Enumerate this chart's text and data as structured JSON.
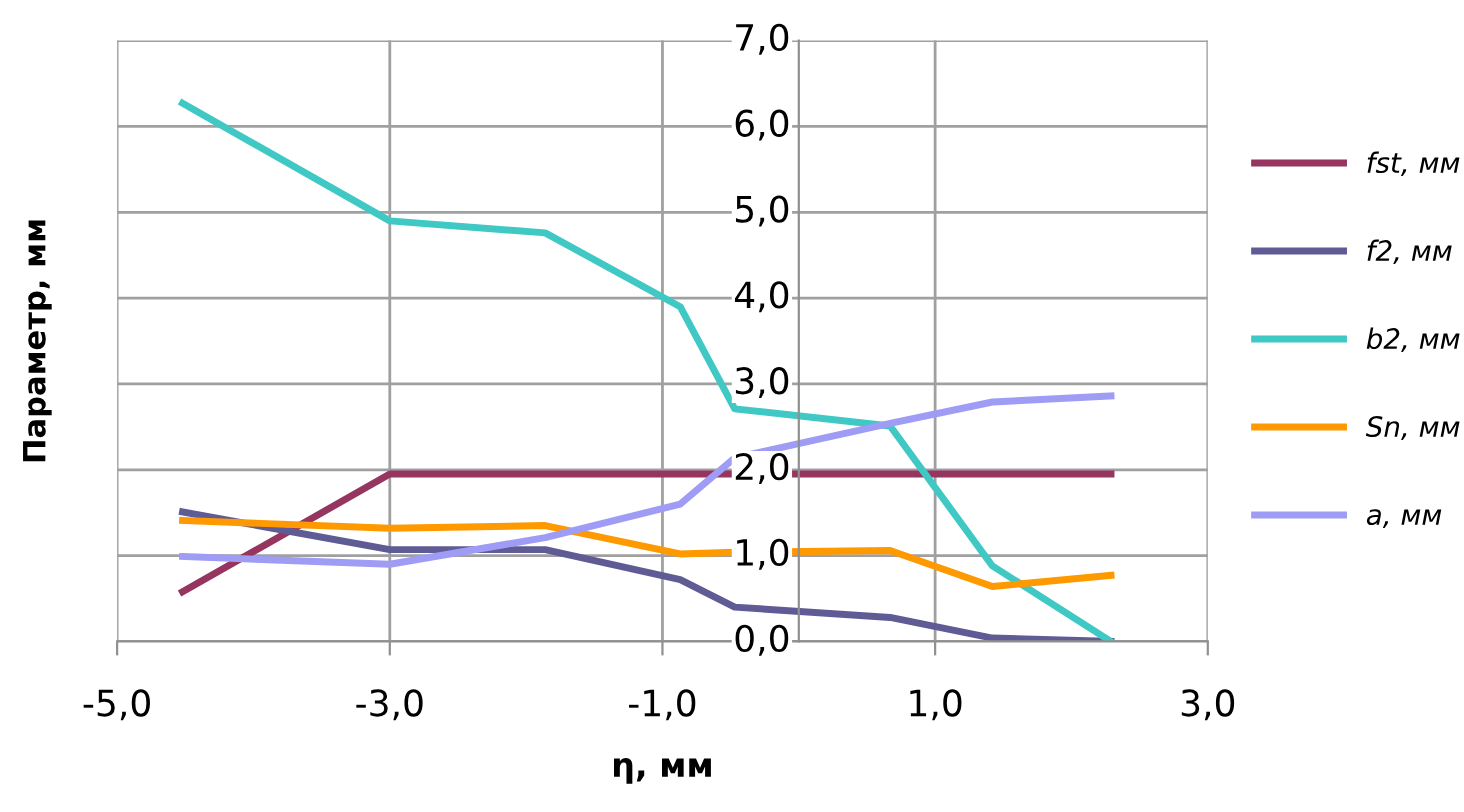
{
  "chart_data": {
    "type": "line",
    "xlabel": "η, мм",
    "ylabel": "Параметр, мм",
    "x": [
      -4.52,
      -3.0,
      -1.86,
      -0.87,
      -0.47,
      0.67,
      1.42,
      2.29
    ],
    "series": [
      {
        "name": "fst, мм",
        "color": "#953560",
        "values": [
          0.58,
          1.95,
          1.95,
          1.95,
          1.95,
          1.95,
          1.95,
          1.95
        ]
      },
      {
        "name": "f2, мм",
        "color": "#5f5b94",
        "values": [
          1.51,
          1.07,
          1.07,
          0.72,
          0.4,
          0.28,
          0.04,
          0.0
        ]
      },
      {
        "name": "b2, мм",
        "color": "#40c8c4",
        "values": [
          6.27,
          4.9,
          4.76,
          3.9,
          2.71,
          2.51,
          0.88,
          0.0
        ]
      },
      {
        "name": "Sn, мм",
        "color": "#ff9900",
        "values": [
          1.41,
          1.32,
          1.35,
          1.02,
          1.04,
          1.06,
          0.64,
          0.77
        ]
      },
      {
        "name": "a, мм",
        "color": "#9f9cf6",
        "values": [
          0.99,
          0.9,
          1.21,
          1.6,
          2.14,
          2.54,
          2.79,
          2.86
        ]
      }
    ],
    "xlim": [
      -5,
      3
    ],
    "xticks": [
      {
        "value": -5,
        "label": "-5,0"
      },
      {
        "value": -3,
        "label": "-3,0"
      },
      {
        "value": -1,
        "label": "-1,0"
      },
      {
        "value": 1,
        "label": "1,0"
      },
      {
        "value": 3,
        "label": "3,0"
      }
    ],
    "ylim": [
      0,
      7
    ],
    "yticks": [
      {
        "value": 0,
        "label": "0,0"
      },
      {
        "value": 1,
        "label": "1,0"
      },
      {
        "value": 2,
        "label": "2,0"
      },
      {
        "value": 3,
        "label": "3,0"
      },
      {
        "value": 4,
        "label": "4,0"
      },
      {
        "value": 5,
        "label": "5,0"
      },
      {
        "value": 6,
        "label": "6,0"
      },
      {
        "value": 7,
        "label": "7,0"
      }
    ],
    "grid": true,
    "legend": "right",
    "marker": "none",
    "line_style": "solid"
  }
}
